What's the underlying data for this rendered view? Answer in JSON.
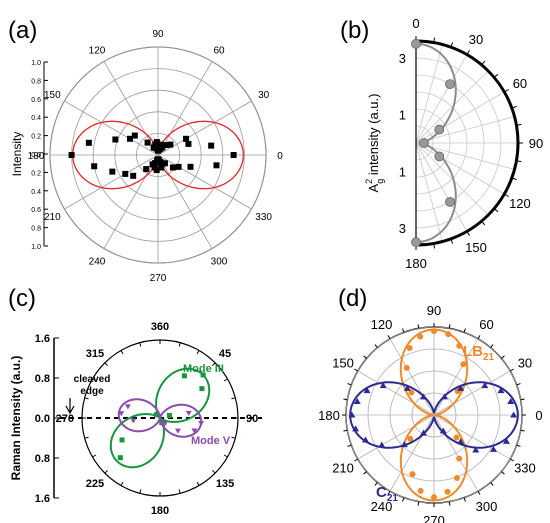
{
  "figure": {
    "panel_labels": [
      "(a)",
      "(b)",
      "(c)",
      "(d)"
    ]
  },
  "chart_data": [
    {
      "panel": "(a)",
      "type": "polar-scatter",
      "ylabel": "Intensity",
      "angle_ticks": [
        "0",
        "30",
        "60",
        "90",
        "120",
        "150",
        "180",
        "210",
        "240",
        "270",
        "300",
        "330"
      ],
      "radial_ticks": [
        "1.0",
        "0.8",
        "0.6",
        "0.4",
        "0.2",
        "0.0",
        "0.2",
        "0.4",
        "0.6",
        "0.8",
        "1.0"
      ],
      "rlim": [
        0,
        1.0
      ],
      "grid": true,
      "colors": {
        "points": "#000000",
        "fit": "#e32626"
      },
      "series": [
        {
          "kind": "points",
          "values": [
            [
              0,
              0.7
            ],
            [
              180,
              0.8
            ],
            [
              170,
              0.65
            ],
            [
              190,
              0.6
            ],
            [
              10,
              0.5
            ],
            [
              350,
              0.55
            ],
            [
              160,
              0.42
            ],
            [
              200,
              0.45
            ],
            [
              20,
              0.3
            ],
            [
              340,
              0.32
            ],
            [
              140,
              0.28
            ],
            [
              220,
              0.3
            ],
            [
              30,
              0.3
            ],
            [
              330,
              0.22
            ],
            [
              40,
              0.15
            ],
            [
              320,
              0.18
            ],
            [
              50,
              0.12
            ],
            [
              310,
              0.1
            ],
            [
              60,
              0.08
            ],
            [
              300,
              0.09
            ],
            [
              70,
              0.06
            ],
            [
              290,
              0.07
            ],
            [
              80,
              0.05
            ],
            [
              280,
              0.05
            ],
            [
              90,
              0.04
            ],
            [
              270,
              0.04
            ],
            [
              100,
              0.06
            ],
            [
              260,
              0.05
            ],
            [
              110,
              0.07
            ],
            [
              250,
              0.08
            ],
            [
              120,
              0.08
            ],
            [
              240,
              0.1
            ],
            [
              130,
              0.15
            ],
            [
              230,
              0.17
            ],
            [
              150,
              0.3
            ],
            [
              210,
              0.35
            ],
            [
              75,
              0.1
            ],
            [
              105,
              0.1
            ],
            [
              255,
              0.12
            ],
            [
              285,
              0.12
            ],
            [
              95,
              0.12
            ],
            [
              265,
              0.14
            ]
          ]
        },
        {
          "kind": "fit",
          "amplitude": 0.75,
          "offset": 0.04
        }
      ]
    },
    {
      "panel": "(b)",
      "type": "polar-half",
      "ylabel": "A",
      "ylabel_sup": "2",
      "ylabel_sub": "g",
      "ylabel_rest": " intensity (a.u.)",
      "angle_ticks": [
        "0",
        "30",
        "60",
        "90",
        "120",
        "150",
        "180"
      ],
      "radial_ticks": [
        "3",
        "1",
        "1",
        "3"
      ],
      "rlim": [
        0,
        3.6
      ],
      "grid": true,
      "colors": {
        "points": "#999999",
        "fit": "#8c8c8c",
        "frame": "#000000"
      },
      "series": [
        {
          "kind": "points",
          "values": [
            [
              0,
              3.5
            ],
            [
              30,
              2.4
            ],
            [
              60,
              0.95
            ],
            [
              90,
              0.28
            ],
            [
              120,
              0.95
            ],
            [
              150,
              2.4
            ],
            [
              180,
              3.5
            ]
          ]
        },
        {
          "kind": "fit",
          "model": "3.5*cos^2(theta)+0.28"
        }
      ]
    },
    {
      "panel": "(c)",
      "type": "polar",
      "ylabel": "Raman Intensity (a.u.)",
      "angle_ticks": [
        "360",
        "45",
        "90",
        "135",
        "180",
        "225",
        "270",
        "315"
      ],
      "radial_ticks": [
        "1.6",
        "0.8",
        "0.0",
        "0.8",
        "1.6"
      ],
      "rlim": [
        0,
        1.6
      ],
      "annotation": [
        "cleaved",
        "edge"
      ],
      "series": [
        {
          "name": "Mode III",
          "color": "#16953c",
          "peak_angle": 45,
          "amplitude": 1.25,
          "points": [
            [
              45,
              1.25
            ],
            [
              55,
              1.05
            ],
            [
              30,
              1.0
            ],
            [
              225,
              1.15
            ],
            [
              240,
              0.9
            ],
            [
              75,
              0.2
            ],
            [
              135,
              0.12
            ],
            [
              315,
              0.1
            ],
            [
              160,
              0.1
            ]
          ]
        },
        {
          "name": "Mode V",
          "color": "#8b4bb0",
          "peak_angle": 97,
          "amplitude": 0.85,
          "points": [
            [
              97,
              0.85
            ],
            [
              110,
              0.75
            ],
            [
              125,
              0.45
            ],
            [
              80,
              0.6
            ],
            [
              277,
              0.8
            ],
            [
              290,
              0.7
            ],
            [
              265,
              0.55
            ],
            [
              140,
              0.15
            ]
          ]
        }
      ]
    },
    {
      "panel": "(d)",
      "type": "polar",
      "angle_ticks": [
        "0",
        "30",
        "60",
        "90",
        "120",
        "150",
        "180",
        "210",
        "240",
        "270",
        "300",
        "330"
      ],
      "rlim": [
        0,
        1.05
      ],
      "grid": true,
      "series": [
        {
          "name": "LB",
          "name_sub": "21",
          "color": "#f08a2a",
          "points": [
            [
              90,
              1.0
            ],
            [
              80,
              0.98
            ],
            [
              70,
              0.88
            ],
            [
              60,
              0.7
            ],
            [
              100,
              0.95
            ],
            [
              110,
              0.85
            ],
            [
              120,
              0.65
            ],
            [
              270,
              0.98
            ],
            [
              260,
              0.92
            ],
            [
              250,
              0.75
            ],
            [
              280,
              0.93
            ],
            [
              290,
              0.8
            ],
            [
              300,
              0.6
            ],
            [
              45,
              0.4
            ],
            [
              315,
              0.38
            ],
            [
              135,
              0.38
            ],
            [
              225,
              0.4
            ]
          ]
        },
        {
          "name": "C",
          "name_sub": "21",
          "color": "#2b2b8f",
          "points": [
            [
              0,
              0.95
            ],
            [
              10,
              0.93
            ],
            [
              20,
              0.85
            ],
            [
              30,
              0.7
            ],
            [
              340,
              0.92
            ],
            [
              330,
              0.82
            ],
            [
              320,
              0.65
            ],
            [
              180,
              0.98
            ],
            [
              170,
              0.93
            ],
            [
              160,
              0.85
            ],
            [
              150,
              0.7
            ],
            [
              190,
              0.95
            ],
            [
              200,
              0.87
            ],
            [
              210,
              0.72
            ],
            [
              45,
              0.45
            ],
            [
              135,
              0.45
            ],
            [
              225,
              0.5
            ],
            [
              315,
              0.45
            ],
            [
              120,
              0.25
            ],
            [
              240,
              0.25
            ],
            [
              300,
              0.22
            ],
            [
              60,
              0.25
            ]
          ]
        }
      ]
    }
  ]
}
